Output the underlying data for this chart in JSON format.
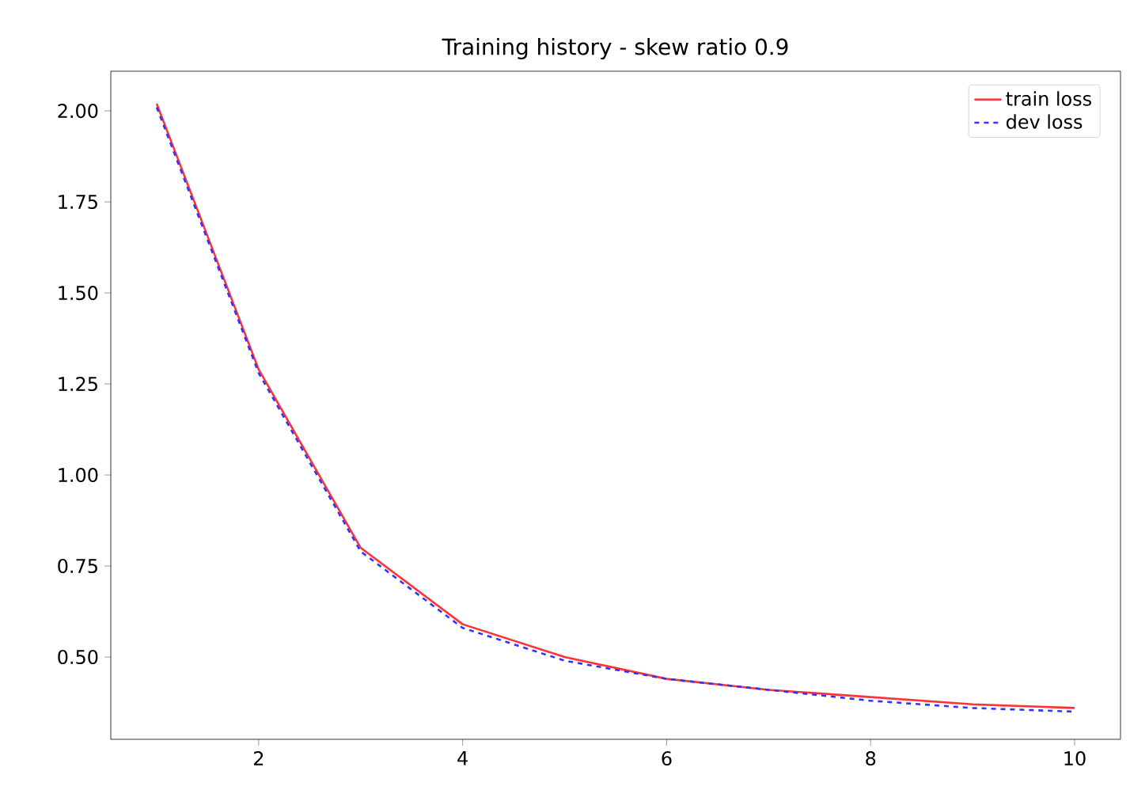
{
  "chart_data": {
    "type": "line",
    "title": "Training history - skew ratio 0.9",
    "x": [
      1,
      2,
      3,
      4,
      5,
      6,
      7,
      8,
      9,
      10
    ],
    "series": [
      {
        "name": "train loss",
        "color": "#ff3333",
        "line_style": "solid",
        "values": [
          2.02,
          1.29,
          0.8,
          0.59,
          0.5,
          0.44,
          0.41,
          0.39,
          0.37,
          0.36
        ]
      },
      {
        "name": "dev loss",
        "color": "#3333ff",
        "line_style": "dashed",
        "values": [
          2.01,
          1.28,
          0.79,
          0.58,
          0.49,
          0.44,
          0.41,
          0.38,
          0.36,
          0.35
        ]
      }
    ],
    "xlim": [
      0.55,
      10.45
    ],
    "ylim": [
      0.274,
      2.109
    ],
    "xticks": [
      2,
      4,
      6,
      8,
      10
    ],
    "yticks": [
      {
        "value": 0.5,
        "label": "0.50"
      },
      {
        "value": 0.75,
        "label": "0.75"
      },
      {
        "value": 1.0,
        "label": "1.00"
      },
      {
        "value": 1.25,
        "label": "1.25"
      },
      {
        "value": 1.5,
        "label": "1.50"
      },
      {
        "value": 1.75,
        "label": "1.75"
      },
      {
        "value": 2.0,
        "label": "2.00"
      }
    ],
    "grid": false,
    "legend": "top right",
    "marker": "none"
  }
}
